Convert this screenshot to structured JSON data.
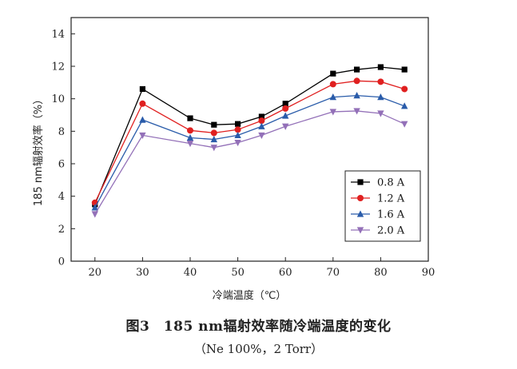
{
  "chart_data": {
    "type": "line",
    "xlabel": "冷端温度（℃）",
    "ylabel": "185 nm辐射效率（%）",
    "xlim": [
      15,
      90
    ],
    "ylim": [
      0,
      15
    ],
    "xticks": [
      20,
      30,
      40,
      50,
      60,
      70,
      80,
      90
    ],
    "yticks": [
      0,
      2,
      4,
      6,
      8,
      10,
      12,
      14
    ],
    "grid": false,
    "legend_position": "bottom-right",
    "x": [
      20,
      30,
      40,
      45,
      50,
      55,
      60,
      70,
      75,
      80,
      85
    ],
    "series": [
      {
        "name": "0.8 A",
        "color": "#000000",
        "marker": "square",
        "values": [
          3.5,
          10.6,
          8.8,
          8.4,
          8.45,
          8.9,
          9.7,
          11.55,
          11.8,
          11.95,
          11.8
        ]
      },
      {
        "name": "1.2 A",
        "color": "#e02020",
        "marker": "circle",
        "values": [
          3.6,
          9.7,
          8.05,
          7.9,
          8.1,
          8.65,
          9.4,
          10.9,
          11.1,
          11.05,
          10.6
        ]
      },
      {
        "name": "1.6 A",
        "color": "#2a5caa",
        "marker": "triangle-up",
        "values": [
          3.3,
          8.7,
          7.6,
          7.5,
          7.75,
          8.3,
          8.95,
          10.1,
          10.2,
          10.1,
          9.55
        ]
      },
      {
        "name": "2.0 A",
        "color": "#9370b8",
        "marker": "triangle-down",
        "values": [
          2.9,
          7.75,
          7.25,
          7.0,
          7.3,
          7.75,
          8.3,
          9.2,
          9.25,
          9.1,
          8.45
        ]
      }
    ]
  },
  "caption": {
    "title": "图3　185 nm辐射效率随冷端温度的变化",
    "subtitle": "（Ne 100%，2 Torr）"
  }
}
